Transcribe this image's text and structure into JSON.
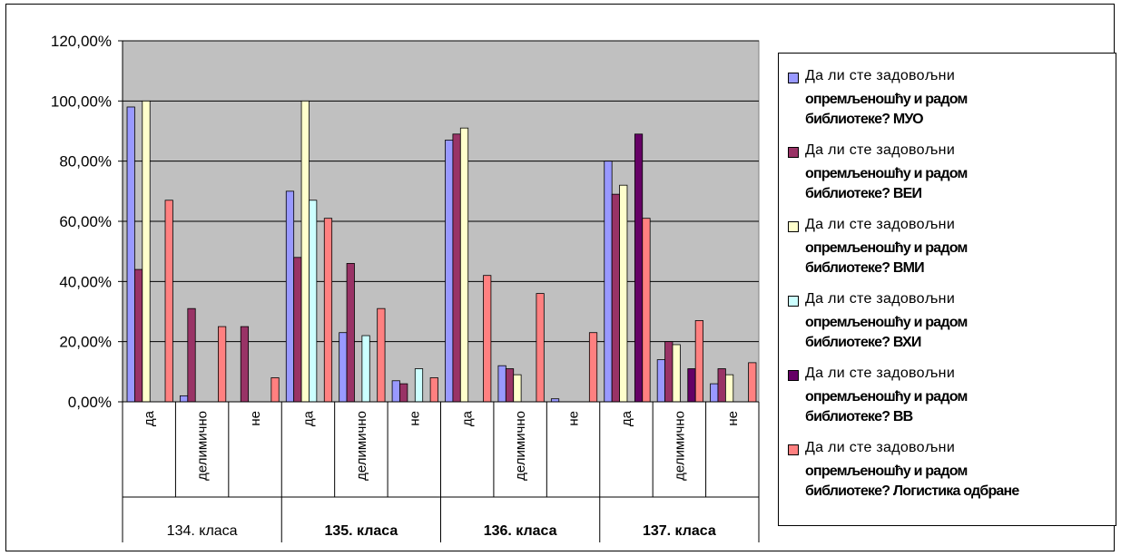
{
  "chart_data": {
    "type": "bar",
    "y_axis": {
      "min": 0,
      "max": 1.2,
      "ticks": [
        "0,00%",
        "20,00%",
        "40,00%",
        "60,00%",
        "80,00%",
        "100,00%",
        "120,00%"
      ]
    },
    "grid": true,
    "plot_background": "#c0c0c0",
    "legend_position": "right",
    "groups": [
      {
        "label": "134. класа",
        "bold": false,
        "categories": [
          "да",
          "делимично",
          "не"
        ]
      },
      {
        "label": "135. класа",
        "bold": true,
        "categories": [
          "да",
          "делимично",
          "не"
        ]
      },
      {
        "label": "136. класа",
        "bold": true,
        "categories": [
          "да",
          "делимично",
          "не"
        ]
      },
      {
        "label": "137. класа",
        "bold": true,
        "categories": [
          "да",
          "делимично",
          "не"
        ]
      }
    ],
    "series": [
      {
        "name_line1": "Да ли сте задовољни",
        "name_rest": "опремљеношћу и радом\nбиблиотеке? МУО",
        "color": "#9999ff",
        "values": [
          0.98,
          0.02,
          0,
          0.7,
          0.23,
          0.07,
          0.87,
          0.12,
          0.01,
          0.8,
          0.14,
          0.06
        ]
      },
      {
        "name_line1": "Да ли сте задовољни",
        "name_rest": "опремљеношћу и радом\nбиблиотеке? ВЕИ",
        "color": "#993366",
        "values": [
          0.44,
          0.31,
          0.25,
          0.48,
          0.46,
          0.06,
          0.89,
          0.11,
          0,
          0.69,
          0.2,
          0.11
        ]
      },
      {
        "name_line1": "Да ли сте задовољни",
        "name_rest": "опремљеношћу и радом\nбиблиотеке? ВМИ",
        "color": "#ffffcc",
        "values": [
          1.0,
          0,
          0,
          1.0,
          0,
          0,
          0.91,
          0.09,
          0,
          0.72,
          0.19,
          0.09
        ]
      },
      {
        "name_line1": "Да ли сте задовољни",
        "name_rest": "опремљеношћу и радом\nбиблиотеке? ВХИ",
        "color": "#ccffff",
        "values": [
          0,
          0,
          0,
          0.67,
          0.22,
          0.11,
          0,
          0,
          0,
          0,
          0,
          0
        ]
      },
      {
        "name_line1": "Да ли сте задовољни",
        "name_rest": "опремљеношћу и радом\nбиблиотеке? ВВ",
        "color": "#660066",
        "values": [
          0,
          0,
          0,
          0,
          0,
          0,
          0,
          0,
          0,
          0.89,
          0.11,
          0
        ]
      },
      {
        "name_line1": "Да ли сте задовољни",
        "name_rest": "опремљеношћу и радом\nбиблиотеке? Логистика одбране",
        "color": "#ff8080",
        "values": [
          0.67,
          0.25,
          0.08,
          0.61,
          0.31,
          0.08,
          0.42,
          0.36,
          0.23,
          0.61,
          0.27,
          0.13
        ]
      }
    ]
  }
}
